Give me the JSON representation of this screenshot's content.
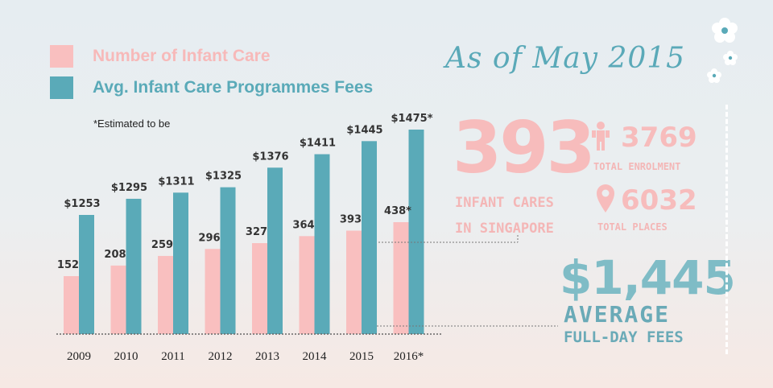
{
  "legend": {
    "infant_care": {
      "label": "Number of Infant Care",
      "color": "#f9bfbf"
    },
    "fees": {
      "label": "Avg. Infant Care Programmes Fees",
      "color": "#5aaab8"
    }
  },
  "note": "*Estimated to be",
  "chart_data": {
    "type": "bar",
    "categories": [
      "2009",
      "2010",
      "2011",
      "2012",
      "2013",
      "2014",
      "2015",
      "2016*"
    ],
    "series": [
      {
        "name": "Number of Infant Care",
        "values": [
          152,
          208,
          259,
          296,
          327,
          364,
          393,
          438
        ],
        "labels": [
          "152",
          "208",
          "259",
          "296",
          "327",
          "364",
          "393",
          "438*"
        ],
        "color": "#f9bfbf"
      },
      {
        "name": "Avg. Infant Care Programmes Fees",
        "values": [
          1253,
          1295,
          1311,
          1325,
          1376,
          1411,
          1445,
          1475
        ],
        "labels": [
          "$1253",
          "$1295",
          "$1311",
          "$1325",
          "$1376",
          "$1411",
          "$1445",
          "$1475*"
        ],
        "color": "#5aaab8"
      }
    ],
    "title": "",
    "xlabel": "",
    "ylabel": ""
  },
  "panel": {
    "as_of": "As of May 2015",
    "infant_cares_count": "393",
    "infant_cares_line1": "INFANT CARES",
    "infant_cares_line2": "IN SINGAPORE",
    "enrolment_value": "3769",
    "enrolment_label": "TOTAL ENROLMENT",
    "places_value": "6032",
    "places_label": "TOTAL PLACES",
    "fee_value": "$1,445",
    "fee_label_1": "AVERAGE",
    "fee_label_2": "FULL-DAY FEES"
  }
}
